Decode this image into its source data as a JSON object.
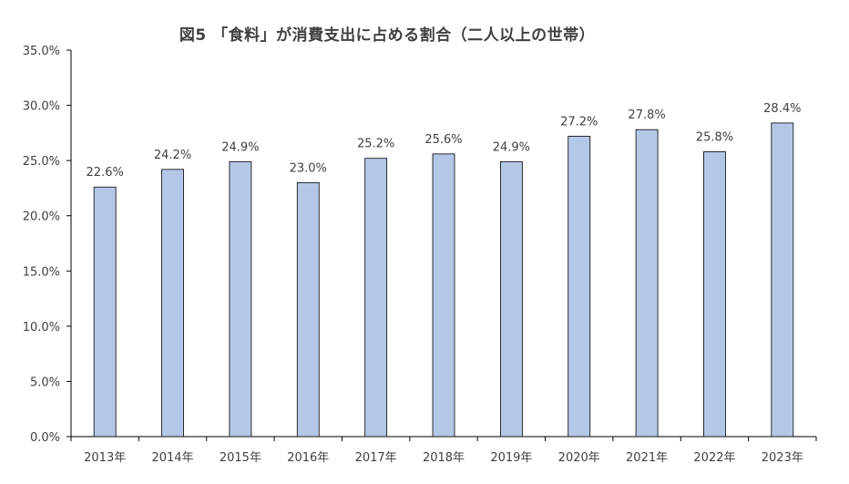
{
  "chart_data": {
    "type": "bar",
    "title": "図5 「食料」が消費支出に占める割合（二人以上の世帯）",
    "xlabel": "",
    "ylabel": "",
    "categories": [
      "2013年",
      "2014年",
      "2015年",
      "2016年",
      "2017年",
      "2018年",
      "2019年",
      "2020年",
      "2021年",
      "2022年",
      "2023年"
    ],
    "values": [
      22.6,
      24.2,
      24.9,
      23.0,
      25.2,
      25.6,
      24.9,
      27.2,
      27.8,
      25.8,
      28.4
    ],
    "value_labels": [
      "22.6%",
      "24.2%",
      "24.9%",
      "23.0%",
      "25.2%",
      "25.6%",
      "24.9%",
      "27.2%",
      "27.8%",
      "25.8%",
      "28.4%"
    ],
    "ylim": [
      0,
      35
    ],
    "y_ticks": [
      0,
      5,
      10,
      15,
      20,
      25,
      30,
      35
    ],
    "y_tick_labels": [
      "0.0%",
      "5.0%",
      "10.0%",
      "15.0%",
      "20.0%",
      "25.0%",
      "30.0%",
      "35.0%"
    ],
    "grid": false,
    "legend": "none",
    "colors": {
      "bar_fill": "#B4C7E7",
      "bar_stroke": "#000000",
      "axis": "#000000",
      "text": "#404040"
    }
  }
}
